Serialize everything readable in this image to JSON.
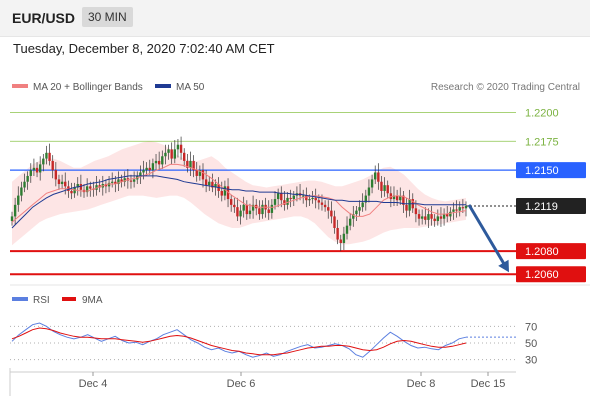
{
  "header": {
    "symbol": "EUR/USD",
    "interval": "30 MIN",
    "datetime": "Tuesday, December 8, 2020 7:02:40 AM CET"
  },
  "colors": {
    "candle_up": "#2e7d32",
    "candle_down": "#c62828",
    "ma20": "#f08080",
    "bollinger_fill": "#fde0e0",
    "ma50": "#1f3a93",
    "target_line": "#8bc34a",
    "resistance": "#2962ff",
    "support": "#e01010",
    "arrow": "#2e5a9c",
    "rsi": "#5b7fe0",
    "rsi_ma": "#e01010",
    "grid_text": "#555555"
  },
  "chart_data": [
    {
      "type": "candlestick",
      "title": "",
      "legend": [
        {
          "name": "MA 20 + Bollinger Bands",
          "color": "#f08080"
        },
        {
          "name": "MA 50",
          "color": "#1f3a93"
        }
      ],
      "copyright": "Research © 2020 Trading Central",
      "ylim": [
        1.2055,
        1.2215
      ],
      "x_ticks": [
        "Dec 4",
        "Dec 6",
        "Dec 8",
        "Dec 15"
      ],
      "levels": [
        {
          "value": 1.22,
          "label": "1.2200",
          "kind": "target"
        },
        {
          "value": 1.2175,
          "label": "1.2175",
          "kind": "target"
        },
        {
          "value": 1.215,
          "label": "1.2150",
          "kind": "resistance"
        },
        {
          "value": 1.2119,
          "label": "1.2119",
          "kind": "last"
        },
        {
          "value": 1.208,
          "label": "1.2080",
          "kind": "support"
        },
        {
          "value": 1.206,
          "label": "1.2060",
          "kind": "support"
        }
      ],
      "projection": {
        "from": 1.212,
        "to": 1.206
      },
      "close": [
        1.211,
        1.212,
        1.2128,
        1.2135,
        1.214,
        1.2145,
        1.215,
        1.2152,
        1.2148,
        1.2155,
        1.216,
        1.2165,
        1.2158,
        1.215,
        1.2142,
        1.2138,
        1.214,
        1.2136,
        1.2132,
        1.213,
        1.2135,
        1.2138,
        1.2133,
        1.2131,
        1.2136,
        1.2134,
        1.2133,
        1.2137,
        1.2135,
        1.2138,
        1.2136,
        1.2139,
        1.214,
        1.2138,
        1.2142,
        1.214,
        1.2143,
        1.2141,
        1.214,
        1.2142,
        1.2145,
        1.2148,
        1.215,
        1.2152,
        1.215,
        1.2156,
        1.2158,
        1.2155,
        1.2162,
        1.2165,
        1.2168,
        1.216,
        1.2168,
        1.2172,
        1.2165,
        1.2158,
        1.2152,
        1.2158,
        1.215,
        1.2145,
        1.215,
        1.2142,
        1.2137,
        1.214,
        1.2135,
        1.2138,
        1.2132,
        1.2128,
        1.2136,
        1.2125,
        1.212,
        1.2118,
        1.211,
        1.2115,
        1.212,
        1.2112,
        1.2115,
        1.212,
        1.2117,
        1.2112,
        1.212,
        1.2116,
        1.2113,
        1.212,
        1.2125,
        1.213,
        1.2124,
        1.212,
        1.2126,
        1.2125,
        1.2128,
        1.213,
        1.2128,
        1.2128,
        1.2124,
        1.2125,
        1.2126,
        1.2124,
        1.2122,
        1.212,
        1.2118,
        1.2115,
        1.211,
        1.21,
        1.209,
        1.2087,
        1.2095,
        1.2102,
        1.2108,
        1.2112,
        1.2115,
        1.2118,
        1.2122,
        1.2128,
        1.2135,
        1.2142,
        1.2148,
        1.214,
        1.2132,
        1.2137,
        1.213,
        1.2125,
        1.2128,
        1.2124,
        1.2128,
        1.212,
        1.2115,
        1.2125,
        1.2117,
        1.2112,
        1.2108,
        1.211,
        1.2107,
        1.2112,
        1.2108,
        1.2106,
        1.211,
        1.2108,
        1.2112,
        1.211,
        1.2114,
        1.2116,
        1.2115,
        1.2118,
        1.2117,
        1.2119
      ],
      "ma20": [
        1.2105,
        1.211,
        1.2115,
        1.212,
        1.2125,
        1.213,
        1.2132,
        1.2134,
        1.2134,
        1.2133,
        1.2132,
        1.2132,
        1.2134,
        1.2136,
        1.2138,
        1.2138,
        1.214,
        1.2142,
        1.2143,
        1.2145,
        1.2147,
        1.215,
        1.2152,
        1.2155,
        1.2155,
        1.2154,
        1.2152,
        1.215,
        1.2147,
        1.2143,
        1.2138,
        1.2133,
        1.2128,
        1.2124,
        1.212,
        1.2119,
        1.2118,
        1.2118,
        1.2118,
        1.212,
        1.2122,
        1.2124,
        1.2126,
        1.2127,
        1.2128,
        1.2127,
        1.2126,
        1.2124,
        1.2118,
        1.2113,
        1.211,
        1.211,
        1.2112,
        1.2118,
        1.2124,
        1.2127,
        1.2128,
        1.2127,
        1.2124,
        1.212,
        1.2117,
        1.2114,
        1.2112,
        1.2112,
        1.2113,
        1.2114,
        1.2115
      ],
      "bb_upper": [
        1.214,
        1.2145,
        1.215,
        1.2155,
        1.2158,
        1.216,
        1.216,
        1.2158,
        1.2155,
        1.2152,
        1.2152,
        1.2155,
        1.2158,
        1.216,
        1.2162,
        1.2165,
        1.2168,
        1.217,
        1.2172,
        1.2174,
        1.2175,
        1.2174,
        1.2172,
        1.2168,
        1.2163,
        1.216,
        1.2158,
        1.2158,
        1.216,
        1.2162,
        1.2158,
        1.2152,
        1.2148,
        1.2144,
        1.214,
        1.2137,
        1.2136,
        1.2135,
        1.2136,
        1.2137,
        1.2138,
        1.2139,
        1.214,
        1.2141,
        1.2141,
        1.214,
        1.2138,
        1.2136,
        1.2136,
        1.2138,
        1.214,
        1.2142,
        1.2145,
        1.2149,
        1.2152,
        1.2153,
        1.215,
        1.2146,
        1.214,
        1.2134,
        1.2129,
        1.2126,
        1.2124,
        1.2123,
        1.2124,
        1.2125,
        1.2126
      ],
      "bb_lower": [
        1.2085,
        1.209,
        1.2095,
        1.21,
        1.2105,
        1.2108,
        1.211,
        1.2112,
        1.2113,
        1.2114,
        1.2115,
        1.2116,
        1.2118,
        1.212,
        1.2122,
        1.2124,
        1.2126,
        1.2128,
        1.2128,
        1.2128,
        1.2127,
        1.2126,
        1.2127,
        1.2128,
        1.2128,
        1.2126,
        1.2122,
        1.2117,
        1.2112,
        1.2108,
        1.2104,
        1.2102,
        1.21,
        1.21,
        1.2102,
        1.2104,
        1.2105,
        1.2106,
        1.2107,
        1.2108,
        1.2109,
        1.211,
        1.211,
        1.2108,
        1.2104,
        1.2098,
        1.2092,
        1.2088,
        1.2086,
        1.2086,
        1.2087,
        1.2088,
        1.209,
        1.2093,
        1.2096,
        1.2098,
        1.2099,
        1.21,
        1.21,
        1.21,
        1.2101,
        1.2102,
        1.2103,
        1.2104,
        1.2105,
        1.2106,
        1.2107
      ],
      "ma50": [
        1.21,
        1.2106,
        1.2112,
        1.2118,
        1.2122,
        1.2126,
        1.2129,
        1.2131,
        1.2133,
        1.2135,
        1.2136,
        1.2138,
        1.2139,
        1.214,
        1.2142,
        1.2143,
        1.2144,
        1.2145,
        1.2145,
        1.2145,
        1.2145,
        1.2145,
        1.2144,
        1.2143,
        1.2142,
        1.214,
        1.2139,
        1.2138,
        1.2137,
        1.2136,
        1.2135,
        1.2134,
        1.2133,
        1.2133,
        1.2132,
        1.2132,
        1.2131,
        1.2131,
        1.2131,
        1.213,
        1.213,
        1.2129,
        1.2129,
        1.2128,
        1.2127,
        1.2126,
        1.2125,
        1.2124,
        1.2124,
        1.2123,
        1.2123,
        1.2123,
        1.2123,
        1.2123,
        1.2122,
        1.2122,
        1.2122,
        1.2121,
        1.2121,
        1.2121,
        1.212,
        1.212,
        1.212,
        1.212,
        1.212,
        1.212,
        1.212
      ]
    },
    {
      "type": "line",
      "title": "",
      "legend": [
        {
          "name": "RSI",
          "color": "#5b7fe0"
        },
        {
          "name": "9MA",
          "color": "#e01010"
        }
      ],
      "ylim": [
        20,
        80
      ],
      "y_ticks": [
        70,
        50,
        30
      ],
      "series": [
        {
          "name": "RSI",
          "values": [
            52,
            60,
            66,
            72,
            74,
            70,
            64,
            60,
            57,
            55,
            57,
            60,
            56,
            52,
            55,
            58,
            53,
            50,
            51,
            48,
            52,
            55,
            60,
            63,
            66,
            60,
            54,
            50,
            45,
            42,
            44,
            40,
            38,
            40,
            36,
            33,
            35,
            38,
            34,
            36,
            40,
            43,
            46,
            48,
            44,
            45,
            47,
            49,
            47,
            43,
            36,
            33,
            40,
            48,
            56,
            63,
            58,
            52,
            47,
            44,
            45,
            43,
            42,
            47,
            50,
            55,
            57
          ]
        },
        {
          "name": "9MA",
          "values": [
            55,
            58,
            62,
            66,
            68,
            67,
            65,
            62,
            60,
            58,
            57,
            57,
            56,
            55,
            55,
            55,
            54,
            53,
            52,
            51,
            52,
            54,
            56,
            58,
            59,
            58,
            56,
            53,
            50,
            47,
            45,
            43,
            41,
            40,
            38,
            37,
            36,
            36,
            36,
            37,
            38,
            40,
            42,
            44,
            45,
            46,
            46,
            47,
            47,
            46,
            44,
            42,
            41,
            42,
            45,
            49,
            52,
            53,
            52,
            50,
            48,
            46,
            45,
            45,
            46,
            48,
            50
          ]
        }
      ]
    }
  ]
}
